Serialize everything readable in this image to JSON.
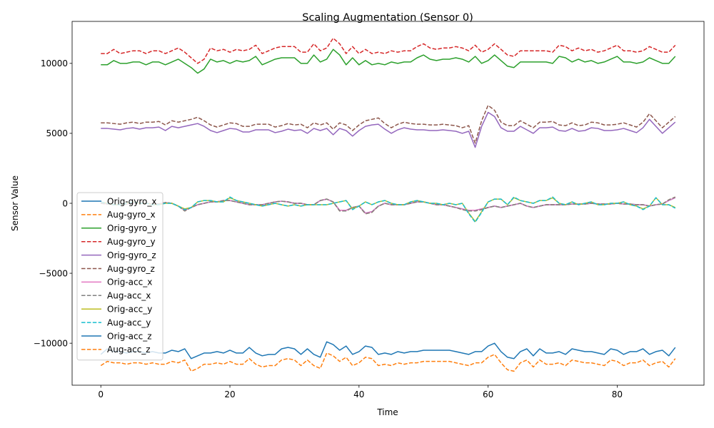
{
  "chart_data": {
    "type": "line",
    "title": "Scaling Augmentation (Sensor 0)",
    "xlabel": "Time",
    "ylabel": "Sensor Value",
    "xlim": [
      -4.45,
      93.45
    ],
    "ylim": [
      -13000,
      13000
    ],
    "x_ticks": [
      0,
      20,
      40,
      60,
      80
    ],
    "y_ticks": [
      -10000,
      -5000,
      0,
      5000,
      10000
    ],
    "y_tick_labels": [
      "−10000",
      "−5000",
      "0",
      "5000",
      "10000"
    ],
    "grid": false,
    "legend_position": "lower-left",
    "x_start": 0,
    "series": [
      {
        "name": "Orig-gyro_x",
        "color": "#1f77b4",
        "dash": "solid",
        "values": [
          0,
          -50,
          -100,
          -100,
          -50,
          0,
          50,
          0,
          -50,
          -50,
          50,
          0,
          -200,
          -500,
          -300,
          -100,
          0,
          100,
          100,
          200,
          200,
          100,
          0,
          -100,
          -100,
          -100,
          0,
          100,
          150,
          100,
          0,
          0,
          -100,
          -100,
          200,
          300,
          100,
          -500,
          -500,
          -300,
          -200,
          -700,
          -600,
          -200,
          0,
          -100,
          -100,
          -100,
          0,
          100,
          100,
          0,
          -100,
          -100,
          -200,
          -300,
          -400,
          -500,
          -500,
          -400,
          -300,
          -200,
          -300,
          -200,
          -100,
          0,
          -200,
          -300,
          -200,
          -100,
          -100,
          -100,
          -100,
          -50,
          -50,
          -50,
          0,
          -50,
          -50,
          -50,
          0,
          -50,
          -50,
          -100,
          -100,
          -200,
          -100,
          -50,
          200,
          400
        ]
      },
      {
        "name": "Aug-gyro_x",
        "color": "#ff7f0e",
        "dash": "dashed",
        "values": [
          0,
          -50,
          -100,
          -100,
          -50,
          0,
          50,
          0,
          -50,
          -50,
          50,
          0,
          -200,
          -550,
          -300,
          -100,
          0,
          100,
          100,
          200,
          200,
          100,
          0,
          -100,
          -100,
          -100,
          0,
          100,
          150,
          100,
          0,
          0,
          -100,
          -100,
          200,
          300,
          100,
          -550,
          -550,
          -300,
          -200,
          -750,
          -650,
          -200,
          0,
          -100,
          -100,
          -100,
          0,
          100,
          100,
          0,
          -100,
          -100,
          -200,
          -300,
          -450,
          -550,
          -550,
          -450,
          -300,
          -200,
          -300,
          -200,
          -100,
          0,
          -200,
          -300,
          -200,
          -100,
          -100,
          -100,
          -100,
          -50,
          -50,
          -50,
          0,
          -50,
          -50,
          -50,
          0,
          -50,
          -50,
          -100,
          -100,
          -200,
          -100,
          -50,
          250,
          450
        ]
      },
      {
        "name": "Orig-gyro_y",
        "color": "#2ca02c",
        "dash": "solid",
        "values": [
          9900,
          9900,
          10200,
          10000,
          10000,
          10100,
          10100,
          9900,
          10100,
          10100,
          9900,
          10100,
          10300,
          10000,
          9700,
          9300,
          9600,
          10300,
          10100,
          10200,
          10000,
          10200,
          10100,
          10200,
          10500,
          9900,
          10100,
          10300,
          10400,
          10400,
          10400,
          10000,
          10000,
          10600,
          10100,
          10300,
          11000,
          10600,
          9900,
          10400,
          9900,
          10200,
          9900,
          10000,
          9900,
          10100,
          10000,
          10100,
          10100,
          10400,
          10600,
          10300,
          10200,
          10300,
          10300,
          10400,
          10300,
          10100,
          10500,
          10000,
          10200,
          10600,
          10200,
          9800,
          9700,
          10100,
          10100,
          10100,
          10100,
          10100,
          10000,
          10500,
          10400,
          10100,
          10300,
          10100,
          10200,
          10000,
          10100,
          10300,
          10500,
          10100,
          10100,
          10000,
          10100,
          10400,
          10200,
          10000,
          10000,
          10500
        ]
      },
      {
        "name": "Aug-gyro_y",
        "color": "#d62728",
        "dash": "dashed",
        "values": [
          10700,
          10700,
          11000,
          10700,
          10800,
          10900,
          10900,
          10700,
          10900,
          10900,
          10700,
          10900,
          11100,
          10800,
          10400,
          10000,
          10300,
          11100,
          10900,
          11000,
          10800,
          11000,
          10900,
          11000,
          11300,
          10700,
          10900,
          11100,
          11200,
          11200,
          11200,
          10800,
          10800,
          11400,
          10900,
          11100,
          11800,
          11400,
          10700,
          11200,
          10700,
          11000,
          10700,
          10800,
          10700,
          10900,
          10800,
          10900,
          10900,
          11200,
          11400,
          11100,
          11000,
          11100,
          11100,
          11200,
          11100,
          10900,
          11300,
          10800,
          11000,
          11400,
          11000,
          10600,
          10500,
          10900,
          10900,
          10900,
          10900,
          10900,
          10800,
          11300,
          11200,
          10900,
          11100,
          10900,
          11000,
          10800,
          10900,
          11100,
          11300,
          10900,
          10900,
          10800,
          10900,
          11200,
          11000,
          10800,
          10800,
          11300
        ]
      },
      {
        "name": "Orig-gyro_z",
        "color": "#9467bd",
        "dash": "solid",
        "values": [
          5350,
          5350,
          5300,
          5250,
          5350,
          5400,
          5300,
          5400,
          5400,
          5450,
          5200,
          5500,
          5400,
          5500,
          5600,
          5700,
          5500,
          5200,
          5050,
          5200,
          5350,
          5300,
          5100,
          5100,
          5250,
          5250,
          5250,
          5050,
          5150,
          5300,
          5200,
          5250,
          5000,
          5350,
          5200,
          5350,
          4900,
          5350,
          5200,
          4800,
          5200,
          5500,
          5600,
          5650,
          5300,
          5000,
          5250,
          5400,
          5300,
          5250,
          5250,
          5200,
          5200,
          5250,
          5200,
          5150,
          5000,
          5150,
          4000,
          5500,
          6500,
          6200,
          5400,
          5150,
          5150,
          5500,
          5250,
          5000,
          5400,
          5400,
          5450,
          5200,
          5150,
          5350,
          5150,
          5200,
          5400,
          5350,
          5200,
          5200,
          5250,
          5350,
          5200,
          5050,
          5400,
          6000,
          5500,
          5000,
          5400,
          5800
        ]
      },
      {
        "name": "Aug-gyro_z",
        "color": "#8c564b",
        "dash": "dashed",
        "values": [
          5750,
          5750,
          5700,
          5650,
          5750,
          5800,
          5700,
          5800,
          5800,
          5850,
          5600,
          5900,
          5800,
          5900,
          6000,
          6150,
          5900,
          5600,
          5450,
          5600,
          5750,
          5700,
          5500,
          5500,
          5650,
          5650,
          5650,
          5450,
          5550,
          5700,
          5600,
          5650,
          5400,
          5750,
          5600,
          5750,
          5300,
          5750,
          5600,
          5200,
          5600,
          5900,
          6000,
          6100,
          5700,
          5400,
          5650,
          5800,
          5700,
          5650,
          5650,
          5600,
          5600,
          5650,
          5600,
          5550,
          5400,
          5550,
          4300,
          5900,
          7000,
          6650,
          5800,
          5550,
          5550,
          5900,
          5650,
          5400,
          5800,
          5800,
          5850,
          5600,
          5550,
          5750,
          5550,
          5600,
          5800,
          5750,
          5600,
          5600,
          5650,
          5750,
          5600,
          5450,
          5800,
          6400,
          5900,
          5400,
          5800,
          6200
        ]
      },
      {
        "name": "Orig-acc_x",
        "color": "#e377c2",
        "dash": "solid",
        "values": [
          0,
          -50,
          -100,
          -100,
          -50,
          0,
          50,
          0,
          -50,
          -50,
          50,
          0,
          -200,
          -500,
          -300,
          -100,
          0,
          100,
          100,
          200,
          200,
          100,
          0,
          -100,
          -100,
          -100,
          0,
          100,
          150,
          100,
          0,
          0,
          -100,
          -100,
          200,
          300,
          100,
          -500,
          -500,
          -300,
          -200,
          -700,
          -600,
          -200,
          0,
          -100,
          -100,
          -100,
          0,
          100,
          100,
          0,
          -100,
          -100,
          -200,
          -300,
          -400,
          -500,
          -500,
          -400,
          -300,
          -200,
          -300,
          -200,
          -100,
          0,
          -200,
          -300,
          -200,
          -100,
          -100,
          -100,
          -100,
          -50,
          -50,
          -50,
          0,
          -50,
          -50,
          -50,
          0,
          -50,
          -50,
          -100,
          -100,
          -200,
          -100,
          -50,
          200,
          400
        ]
      },
      {
        "name": "Aug-acc_x",
        "color": "#7f7f7f",
        "dash": "dashed",
        "values": [
          0,
          -50,
          -100,
          -100,
          -50,
          0,
          50,
          0,
          -50,
          -50,
          50,
          0,
          -200,
          -550,
          -300,
          -100,
          0,
          100,
          100,
          200,
          200,
          100,
          0,
          -100,
          -100,
          -100,
          0,
          100,
          150,
          100,
          0,
          0,
          -100,
          -100,
          200,
          300,
          100,
          -550,
          -550,
          -300,
          -200,
          -750,
          -650,
          -200,
          0,
          -100,
          -100,
          -100,
          0,
          100,
          100,
          0,
          -100,
          -100,
          -200,
          -300,
          -450,
          -550,
          -550,
          -450,
          -300,
          -200,
          -300,
          -200,
          -100,
          0,
          -200,
          -300,
          -200,
          -100,
          -100,
          -100,
          -100,
          -50,
          -50,
          -50,
          0,
          -50,
          -50,
          -50,
          0,
          -50,
          -50,
          -100,
          -100,
          -200,
          -100,
          -50,
          250,
          450
        ]
      },
      {
        "name": "Orig-acc_y",
        "color": "#bcbd22",
        "dash": "solid",
        "values": [
          100,
          0,
          -100,
          -100,
          0,
          100,
          0,
          0,
          -100,
          -100,
          0,
          0,
          -200,
          -400,
          -300,
          100,
          200,
          200,
          100,
          100,
          400,
          200,
          100,
          0,
          -100,
          -200,
          -100,
          0,
          -100,
          -200,
          -100,
          -200,
          -100,
          -100,
          -100,
          -100,
          0,
          100,
          200,
          -400,
          -200,
          100,
          -100,
          100,
          200,
          0,
          -100,
          -100,
          100,
          200,
          100,
          0,
          0,
          -100,
          0,
          -100,
          0,
          -700,
          -1300,
          -600,
          100,
          300,
          300,
          -100,
          400,
          200,
          100,
          0,
          200,
          200,
          400,
          0,
          -100,
          100,
          -100,
          0,
          100,
          -100,
          -100,
          0,
          0,
          100,
          -100,
          -200,
          -400,
          -200,
          400,
          -100,
          -100,
          -300
        ]
      },
      {
        "name": "Aug-acc_y",
        "color": "#17becf",
        "dash": "dashed",
        "values": [
          100,
          0,
          -100,
          -100,
          0,
          100,
          0,
          0,
          -100,
          -100,
          0,
          0,
          -200,
          -450,
          -300,
          100,
          200,
          200,
          100,
          100,
          450,
          200,
          100,
          0,
          -100,
          -200,
          -100,
          0,
          -100,
          -200,
          -100,
          -200,
          -100,
          -100,
          -100,
          -100,
          0,
          100,
          200,
          -450,
          -200,
          100,
          -100,
          100,
          200,
          0,
          -100,
          -100,
          100,
          200,
          100,
          0,
          0,
          -100,
          0,
          -100,
          0,
          -750,
          -1350,
          -650,
          100,
          300,
          300,
          -100,
          450,
          200,
          100,
          0,
          200,
          200,
          450,
          0,
          -100,
          100,
          -100,
          0,
          100,
          -100,
          -100,
          0,
          0,
          100,
          -100,
          -200,
          -450,
          -200,
          400,
          -100,
          -100,
          -350
        ]
      },
      {
        "name": "Orig-acc_z",
        "color": "#1f77b4",
        "dash": "solid",
        "values": [
          -10800,
          -10400,
          -10600,
          -10600,
          -10700,
          -10600,
          -10600,
          -10700,
          -10600,
          -10700,
          -10700,
          -10500,
          -10600,
          -10400,
          -11100,
          -10900,
          -10700,
          -10700,
          -10600,
          -10700,
          -10500,
          -10700,
          -10700,
          -10300,
          -10700,
          -10900,
          -10800,
          -10800,
          -10400,
          -10300,
          -10400,
          -10800,
          -10400,
          -10800,
          -11000,
          -9900,
          -10100,
          -10500,
          -10200,
          -10800,
          -10600,
          -10200,
          -10300,
          -10800,
          -10700,
          -10800,
          -10600,
          -10700,
          -10600,
          -10600,
          -10500,
          -10500,
          -10500,
          -10500,
          -10500,
          -10600,
          -10700,
          -10800,
          -10600,
          -10600,
          -10200,
          -10000,
          -10600,
          -11000,
          -11100,
          -10600,
          -10400,
          -10900,
          -10400,
          -10700,
          -10700,
          -10600,
          -10800,
          -10400,
          -10500,
          -10600,
          -10600,
          -10700,
          -10800,
          -10400,
          -10500,
          -10800,
          -10600,
          -10600,
          -10400,
          -10800,
          -10600,
          -10500,
          -10900,
          -10300
        ]
      },
      {
        "name": "Aug-acc_z",
        "color": "#ff7f0e",
        "dash": "dashed",
        "values": [
          -11600,
          -11300,
          -11400,
          -11400,
          -11500,
          -11400,
          -11400,
          -11500,
          -11400,
          -11500,
          -11500,
          -11300,
          -11400,
          -11200,
          -12000,
          -11800,
          -11500,
          -11500,
          -11400,
          -11500,
          -11300,
          -11500,
          -11500,
          -11100,
          -11500,
          -11700,
          -11600,
          -11600,
          -11200,
          -11100,
          -11200,
          -11600,
          -11200,
          -11600,
          -11800,
          -10700,
          -10900,
          -11300,
          -11000,
          -11600,
          -11400,
          -11000,
          -11100,
          -11600,
          -11500,
          -11600,
          -11400,
          -11500,
          -11400,
          -11400,
          -11300,
          -11300,
          -11300,
          -11300,
          -11300,
          -11400,
          -11500,
          -11600,
          -11400,
          -11400,
          -11000,
          -10800,
          -11400,
          -11900,
          -12000,
          -11400,
          -11200,
          -11700,
          -11200,
          -11500,
          -11500,
          -11400,
          -11600,
          -11200,
          -11300,
          -11400,
          -11400,
          -11500,
          -11600,
          -11200,
          -11300,
          -11600,
          -11400,
          -11400,
          -11200,
          -11600,
          -11400,
          -11300,
          -11700,
          -11100
        ]
      }
    ]
  }
}
